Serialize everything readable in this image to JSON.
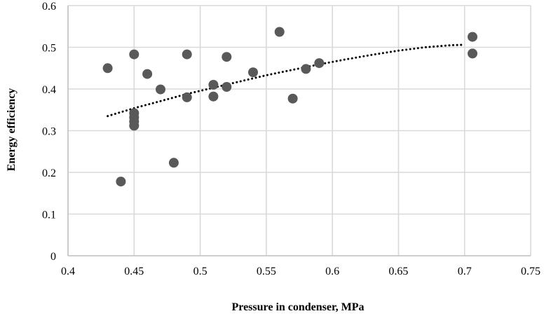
{
  "chart_data": {
    "type": "scatter",
    "title": "",
    "xlabel": "Pressure in condenser, MPa",
    "ylabel": "Energy efficiency",
    "xlim": [
      0.4,
      0.75
    ],
    "ylim": [
      0,
      0.6
    ],
    "x_ticks": [
      "0.4",
      "0.45",
      "0.5",
      "0.55",
      "0.6",
      "0.65",
      "0.7",
      "0.75"
    ],
    "y_ticks": [
      "0",
      "0.1",
      "0.2",
      "0.3",
      "0.4",
      "0.5",
      "0.6"
    ],
    "grid": true,
    "legend": "none",
    "marker_color": "#595959",
    "trendline": {
      "type": "logarithmic",
      "style": "dotted",
      "color": "#000000",
      "x_range": [
        0.43,
        0.7
      ],
      "points": [
        [
          0.43,
          0.335
        ],
        [
          0.45,
          0.354
        ],
        [
          0.47,
          0.371
        ],
        [
          0.49,
          0.388
        ],
        [
          0.51,
          0.403
        ],
        [
          0.53,
          0.418
        ],
        [
          0.55,
          0.433
        ],
        [
          0.57,
          0.446
        ],
        [
          0.59,
          0.459
        ],
        [
          0.61,
          0.471
        ],
        [
          0.63,
          0.482
        ],
        [
          0.65,
          0.492
        ],
        [
          0.67,
          0.5
        ],
        [
          0.69,
          0.505
        ],
        [
          0.7,
          0.506
        ]
      ]
    },
    "points": [
      {
        "x": 0.43,
        "y": 0.45
      },
      {
        "x": 0.44,
        "y": 0.178
      },
      {
        "x": 0.45,
        "y": 0.483
      },
      {
        "x": 0.45,
        "y": 0.342
      },
      {
        "x": 0.45,
        "y": 0.332
      },
      {
        "x": 0.45,
        "y": 0.322
      },
      {
        "x": 0.45,
        "y": 0.312
      },
      {
        "x": 0.46,
        "y": 0.436
      },
      {
        "x": 0.47,
        "y": 0.399
      },
      {
        "x": 0.48,
        "y": 0.223
      },
      {
        "x": 0.49,
        "y": 0.483
      },
      {
        "x": 0.49,
        "y": 0.38
      },
      {
        "x": 0.51,
        "y": 0.41
      },
      {
        "x": 0.51,
        "y": 0.382
      },
      {
        "x": 0.52,
        "y": 0.477
      },
      {
        "x": 0.52,
        "y": 0.405
      },
      {
        "x": 0.54,
        "y": 0.44
      },
      {
        "x": 0.56,
        "y": 0.537
      },
      {
        "x": 0.57,
        "y": 0.377
      },
      {
        "x": 0.58,
        "y": 0.448
      },
      {
        "x": 0.59,
        "y": 0.462
      },
      {
        "x": 0.706,
        "y": 0.525
      },
      {
        "x": 0.706,
        "y": 0.485
      }
    ]
  }
}
